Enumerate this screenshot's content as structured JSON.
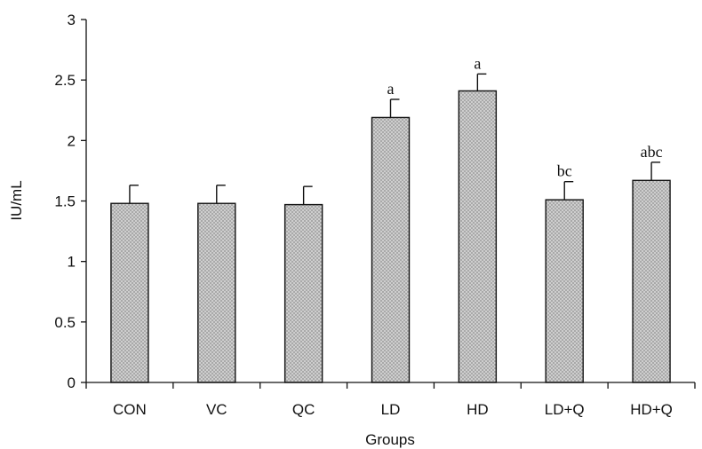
{
  "chart_data": {
    "type": "bar",
    "categories": [
      "CON",
      "VC",
      "QC",
      "LD",
      "HD",
      "LD+Q",
      "HD+Q"
    ],
    "values": [
      1.48,
      1.48,
      1.47,
      2.19,
      2.41,
      1.51,
      1.67
    ],
    "error_upper": [
      0.15,
      0.15,
      0.15,
      0.15,
      0.14,
      0.15,
      0.15
    ],
    "significance": [
      "",
      "",
      "",
      "a",
      "a",
      "bc",
      "abc"
    ],
    "xlabel": "Groups",
    "ylabel": "IU/mL",
    "ylim": [
      0,
      3
    ],
    "yticks": [
      "0",
      "0.5",
      "1",
      "1.5",
      "2",
      "2.5",
      "3"
    ],
    "grid": false,
    "colors": {
      "bar_fill": "#a9a9a9",
      "bar_dots": "#e9e9e9",
      "axis": "#111111"
    }
  }
}
